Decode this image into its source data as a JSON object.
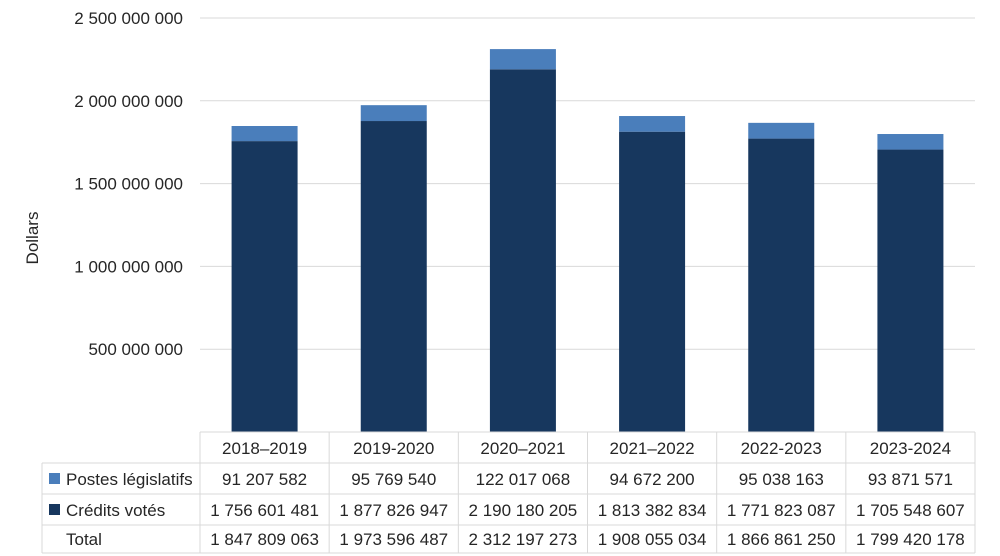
{
  "chart_data": {
    "type": "bar",
    "stacked": true,
    "ylabel": "Dollars",
    "ylim": [
      0,
      2500000000
    ],
    "yticks": [
      "500 000 000",
      "1 000 000 000",
      "1 500 000 000",
      "2 000 000 000",
      "2 500 000 000"
    ],
    "ytick_values": [
      500000000,
      1000000000,
      1500000000,
      2000000000,
      2500000000
    ],
    "grid": true,
    "categories": [
      "2018–2019",
      "2019-2020",
      "2020–2021",
      "2021–2022",
      "2022-2023",
      "2023-2024"
    ],
    "series": [
      {
        "name": "Postes législatifs",
        "color": "#4a7ebb",
        "values": [
          91207582,
          95769540,
          122017068,
          94672200,
          95038163,
          93871571
        ],
        "labels": [
          "91 207 582",
          "95 769 540",
          "122 017 068",
          "94 672 200",
          "95 038 163",
          "93 871 571"
        ]
      },
      {
        "name": "Crédits votés",
        "color": "#17375e",
        "values": [
          1756601481,
          1877826947,
          2190180205,
          1813382834,
          1771823087,
          1705548607
        ],
        "labels": [
          "1 756 601 481",
          "1 877 826 947",
          "2 190 180 205",
          "1 813 382 834",
          "1 771 823 087",
          "1 705 548 607"
        ]
      }
    ],
    "total": {
      "name": "Total",
      "values": [
        1847809063,
        1973596487,
        2312197273,
        1908055034,
        1866861250,
        1799420178
      ],
      "labels": [
        "1 847 809 063",
        "1 973 596 487",
        "2 312 197 273",
        "1 908 055 034",
        "1 866 861 250",
        "1 799 420 178"
      ]
    }
  }
}
